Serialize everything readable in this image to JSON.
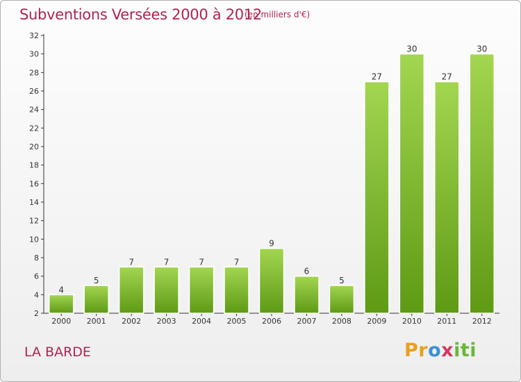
{
  "commune": "LA BARDE",
  "logo": {
    "part1": "Pr",
    "part2": "o",
    "part3": "x",
    "part4": "iti"
  },
  "colors": {
    "title": "#b0234f",
    "bar_top": "#9fd24e",
    "bar_bottom": "#5e9a14",
    "axis": "#333333"
  },
  "chart_data": {
    "type": "bar",
    "title": "Subventions Versées 2000 à 2012",
    "subtitle": "(en milliers d'€)",
    "categories": [
      "2000",
      "2001",
      "2002",
      "2003",
      "2004",
      "2005",
      "2006",
      "2007",
      "2008",
      "2009",
      "2010",
      "2011",
      "2012"
    ],
    "values": [
      4,
      5,
      7,
      7,
      7,
      7,
      9,
      6,
      5,
      27,
      30,
      27,
      30
    ],
    "ylim": [
      2,
      32
    ],
    "yticks": [
      2,
      4,
      6,
      8,
      10,
      12,
      14,
      16,
      18,
      20,
      22,
      24,
      26,
      28,
      30,
      32
    ],
    "grid": false,
    "xlabel": "",
    "ylabel": ""
  }
}
